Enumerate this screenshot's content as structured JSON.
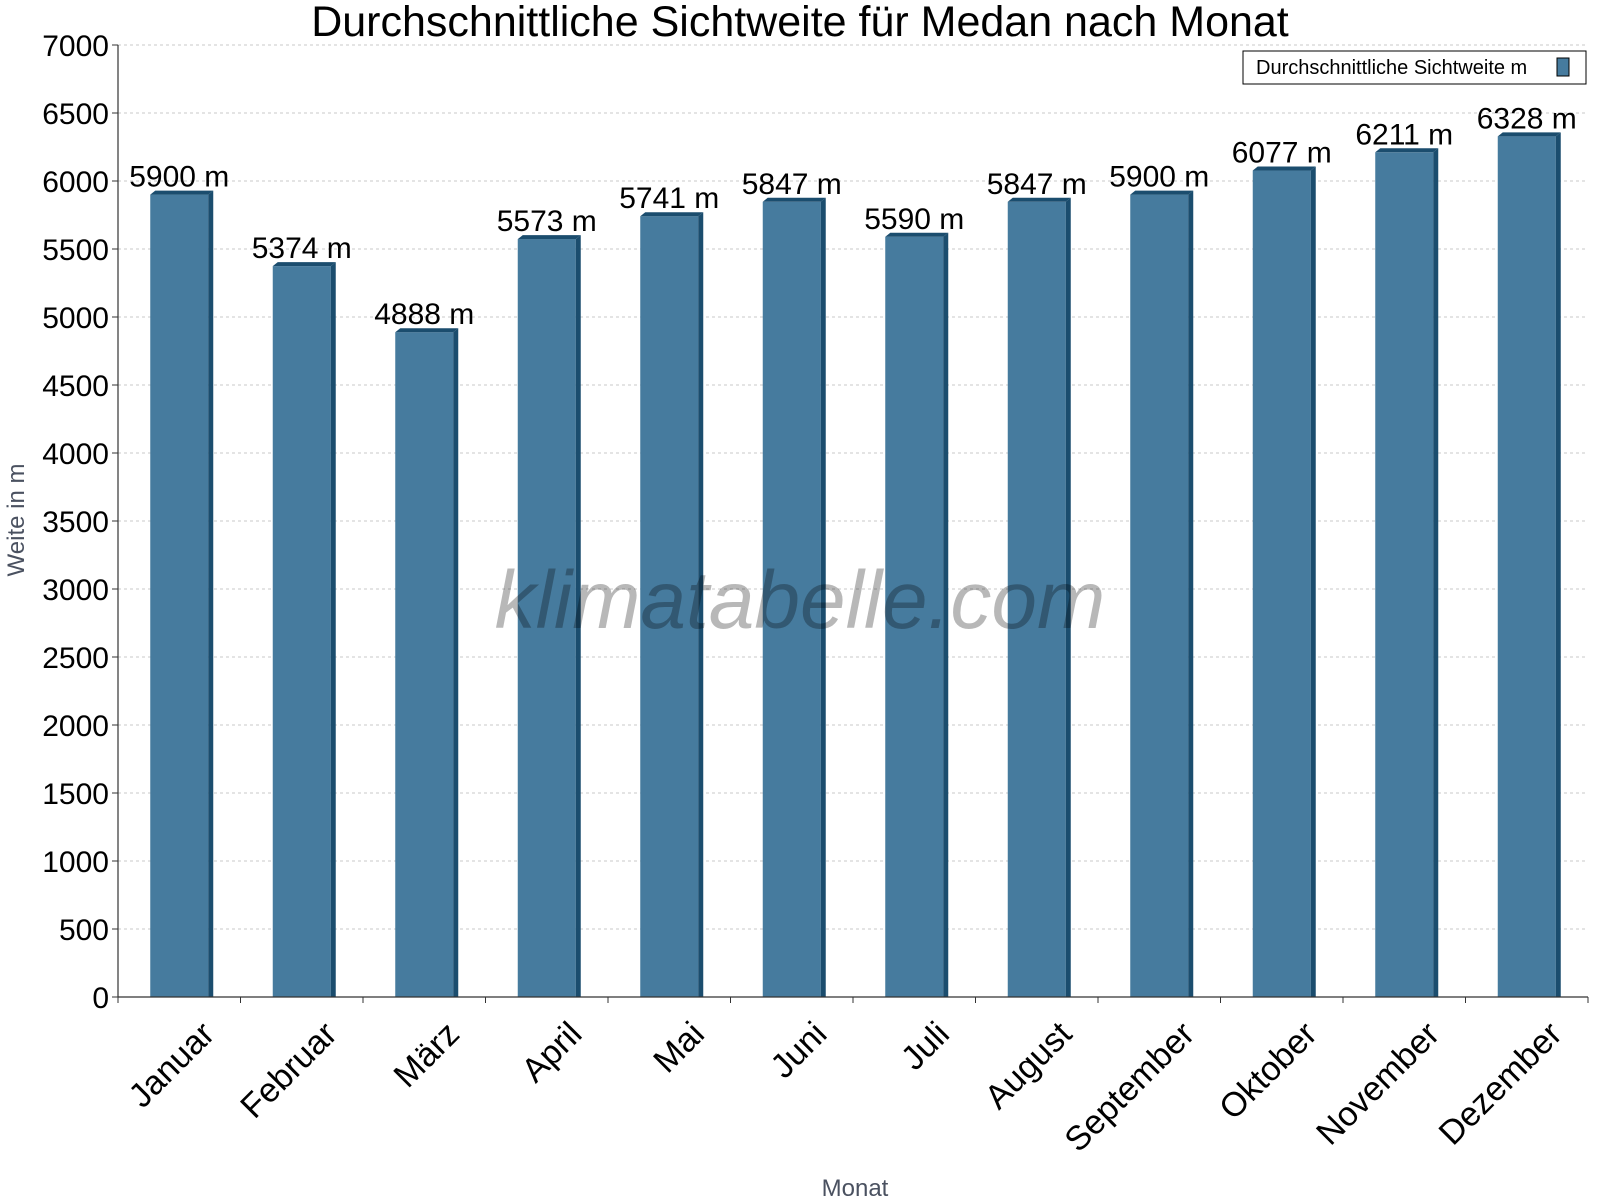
{
  "chart_data": {
    "type": "bar",
    "title": "Durchschnittliche Sichtweite für Medan nach Monat",
    "xlabel": "Monat",
    "ylabel": "Weite in m",
    "ylim": [
      0,
      7000
    ],
    "yticks": [
      0,
      500,
      1000,
      1500,
      2000,
      2500,
      3000,
      3500,
      4000,
      4500,
      5000,
      5500,
      6000,
      6500,
      7000
    ],
    "grid": true,
    "legend_position": "top-right",
    "categories": [
      "Januar",
      "Februar",
      "März",
      "April",
      "Mai",
      "Juni",
      "Juli",
      "August",
      "September",
      "Oktober",
      "November",
      "Dezember"
    ],
    "series": [
      {
        "name": "Durchschnittliche Sichtweite m",
        "values": [
          5900,
          5374,
          4888,
          5573,
          5741,
          5847,
          5590,
          5847,
          5900,
          6077,
          6211,
          6328
        ],
        "labels": [
          "5900 m",
          "5374 m",
          "4888 m",
          "5573 m",
          "5741 m",
          "5847 m",
          "5590 m",
          "5847 m",
          "5900 m",
          "6077 m",
          "6211 m",
          "6328 m"
        ]
      }
    ],
    "colors": {
      "bar": "#467b9e",
      "bar_side": "#1b4d6e",
      "grid": "#c8c8c8",
      "axis": "#333333"
    },
    "watermark": "klimatabelle.com"
  }
}
